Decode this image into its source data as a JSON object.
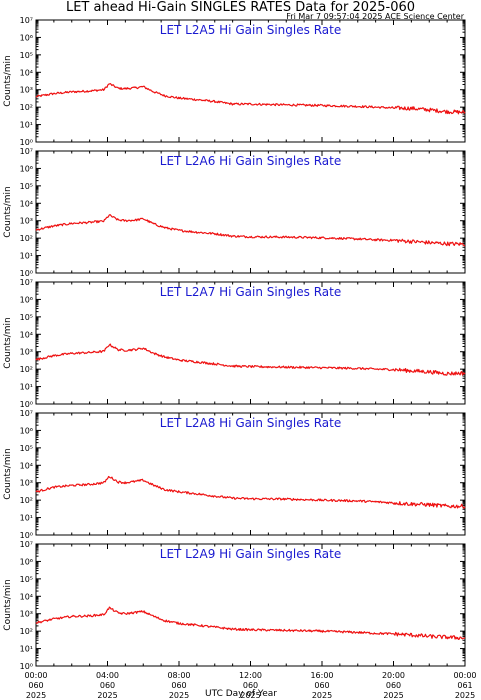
{
  "title": "LET ahead Hi-Gain SINGLES RATES Data for 2025-060",
  "timestamp": "Fri Mar  7 09:57:04 2025 ACE Science Center",
  "colors": {
    "line": "#ee1111",
    "panel_title": "#1a1ad0",
    "axes": "#000000"
  },
  "chart_data": {
    "type": "line",
    "xlabel": "UTC Day of Year",
    "ylabel": "Counts/min",
    "y_scale": "log",
    "ylim": [
      1,
      10000000
    ],
    "y_ticks": [
      "10⁰",
      "10¹",
      "10²",
      "10³",
      "10⁴",
      "10⁵",
      "10⁶",
      "10⁷"
    ],
    "xlim_hours": [
      0,
      24
    ],
    "x_ticks": [
      {
        "time": "00:00",
        "day": "060",
        "year": "2025",
        "hour": 0
      },
      {
        "time": "04:00",
        "day": "060",
        "year": "2025",
        "hour": 4
      },
      {
        "time": "08:00",
        "day": "060",
        "year": "2025",
        "hour": 8
      },
      {
        "time": "12:00",
        "day": "060",
        "year": "2025",
        "hour": 12
      },
      {
        "time": "16:00",
        "day": "060",
        "year": "2025",
        "hour": 16
      },
      {
        "time": "20:00",
        "day": "060",
        "year": "2025",
        "hour": 20
      },
      {
        "time": "00:00",
        "day": "061",
        "year": "2025",
        "hour": 24
      }
    ],
    "panels": [
      {
        "title": "LET L2A5 Hi Gain Singles Rate",
        "x": [
          0,
          1,
          2,
          3,
          3.8,
          4.1,
          4.6,
          5,
          5.6,
          6,
          6.6,
          7.2,
          8,
          9,
          10,
          11,
          12,
          14,
          16,
          18,
          19,
          20,
          21,
          22,
          23,
          24
        ],
        "y": [
          400,
          600,
          750,
          850,
          1000,
          2200,
          1200,
          1150,
          1300,
          1500,
          750,
          450,
          330,
          270,
          210,
          150,
          150,
          135,
          125,
          110,
          100,
          90,
          85,
          70,
          55,
          50
        ]
      },
      {
        "title": "LET L2A6 Hi Gain Singles Rate",
        "x": [
          0,
          1,
          2,
          3,
          3.8,
          4.1,
          4.6,
          5,
          5.6,
          6,
          6.6,
          7.2,
          8,
          9,
          10,
          11,
          12,
          14,
          16,
          18,
          19,
          20,
          21,
          22,
          23,
          24
        ],
        "y": [
          300,
          500,
          700,
          800,
          950,
          2100,
          1100,
          1000,
          1100,
          1300,
          650,
          400,
          280,
          220,
          180,
          130,
          120,
          115,
          105,
          90,
          80,
          75,
          65,
          55,
          48,
          45
        ]
      },
      {
        "title": "LET L2A7 Hi Gain Singles Rate",
        "x": [
          0,
          1,
          2,
          3,
          3.8,
          4.1,
          4.6,
          5,
          5.6,
          6,
          6.6,
          7.2,
          8,
          9,
          10,
          11,
          12,
          14,
          16,
          18,
          19,
          20,
          21,
          22,
          23,
          24
        ],
        "y": [
          350,
          600,
          800,
          900,
          1050,
          2600,
          1300,
          1200,
          1350,
          1600,
          800,
          500,
          330,
          260,
          200,
          150,
          140,
          130,
          120,
          110,
          100,
          95,
          80,
          70,
          55,
          60
        ]
      },
      {
        "title": "LET L2A8 Hi Gain Singles Rate",
        "x": [
          0,
          1,
          2,
          3,
          3.8,
          4.1,
          4.6,
          5,
          5.6,
          6,
          6.6,
          7.2,
          8,
          9,
          10,
          11,
          12,
          14,
          16,
          18,
          19,
          20,
          21,
          22,
          23,
          24
        ],
        "y": [
          300,
          550,
          700,
          800,
          1000,
          2300,
          1100,
          1000,
          1200,
          1400,
          700,
          400,
          300,
          230,
          170,
          130,
          120,
          115,
          100,
          90,
          80,
          70,
          60,
          55,
          45,
          45
        ]
      },
      {
        "title": "LET L2A9 Hi Gain Singles Rate",
        "x": [
          0,
          1,
          2,
          3,
          3.8,
          4.1,
          4.6,
          5,
          5.6,
          6,
          6.6,
          7.2,
          8,
          9,
          10,
          11,
          12,
          14,
          16,
          18,
          19,
          20,
          21,
          22,
          23,
          24
        ],
        "y": [
          300,
          500,
          700,
          750,
          900,
          2200,
          1100,
          1000,
          1200,
          1350,
          700,
          400,
          280,
          220,
          170,
          130,
          120,
          110,
          100,
          85,
          75,
          70,
          60,
          50,
          45,
          40
        ]
      }
    ]
  }
}
